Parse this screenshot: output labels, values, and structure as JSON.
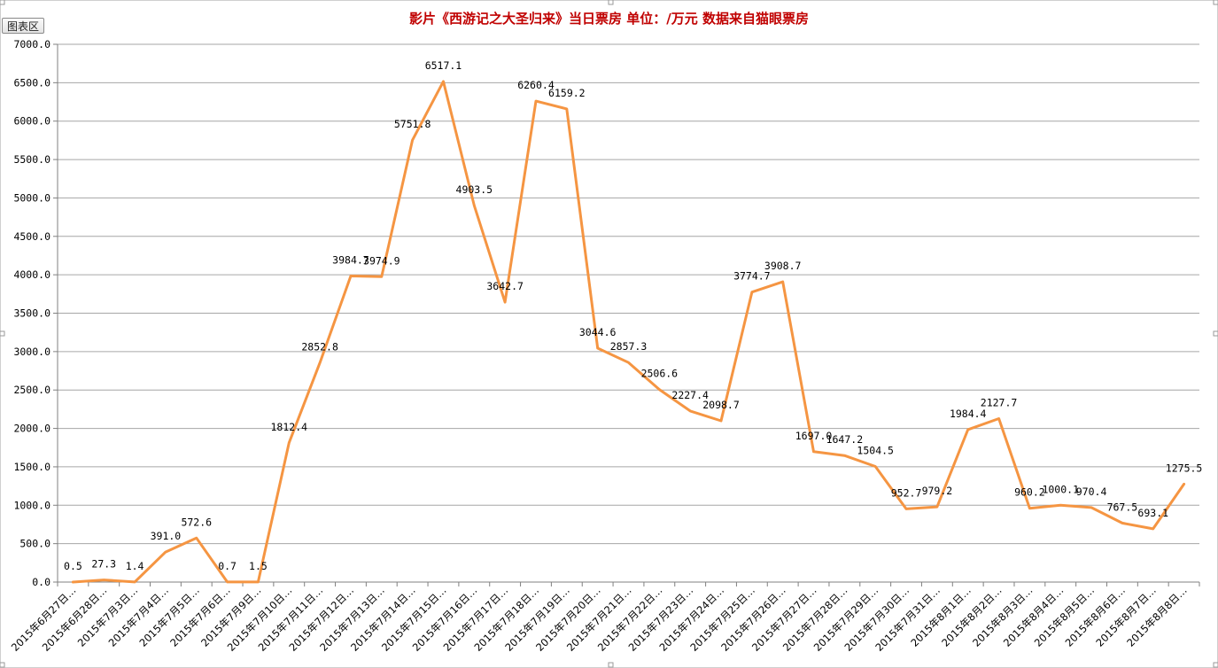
{
  "chart_tab_label": "图表区",
  "chart_data": {
    "type": "line",
    "title": "影片《西游记之大圣归来》当日票房   单位：/万元   数据来自猫眼票房",
    "xlabel": "",
    "ylabel": "",
    "ylim": [
      0,
      7000
    ],
    "yticks": [
      "0.0",
      "500.0",
      "1000.0",
      "1500.0",
      "2000.0",
      "2500.0",
      "3000.0",
      "3500.0",
      "4000.0",
      "4500.0",
      "5000.0",
      "5500.0",
      "6000.0",
      "6500.0",
      "7000.0"
    ],
    "grid": true,
    "legend": "none",
    "line_color": "#f59542",
    "categories": [
      "2015年6月27日…",
      "2015年6月28日…",
      "2015年7月3日…",
      "2015年7月4日…",
      "2015年7月5日…",
      "2015年7月6日…",
      "2015年7月9日…",
      "2015年7月10日…",
      "2015年7月11日…",
      "2015年7月12日…",
      "2015年7月13日…",
      "2015年7月14日…",
      "2015年7月15日…",
      "2015年7月16日…",
      "2015年7月17日…",
      "2015年7月18日…",
      "2015年7月19日…",
      "2015年7月20日…",
      "2015年7月21日…",
      "2015年7月22日…",
      "2015年7月23日…",
      "2015年7月24日…",
      "2015年7月25日…",
      "2015年7月26日…",
      "2015年7月27日…",
      "2015年7月28日…",
      "2015年7月29日…",
      "2015年7月30日…",
      "2015年7月31日…",
      "2015年8月1日…",
      "2015年8月2日…",
      "2015年8月3日…",
      "2015年8月4日…",
      "2015年8月5日…",
      "2015年8月6日…",
      "2015年8月7日…",
      "2015年8月8日…"
    ],
    "values": [
      0.5,
      27.3,
      1.4,
      391.0,
      572.6,
      0.7,
      1.5,
      1812.4,
      2852.8,
      3984.7,
      3974.9,
      5751.8,
      6517.1,
      4903.5,
      3642.7,
      6260.4,
      6159.2,
      3044.6,
      2857.3,
      2506.6,
      2227.4,
      2098.7,
      3774.7,
      3908.7,
      1697.0,
      1647.2,
      1504.5,
      952.7,
      979.2,
      1984.4,
      2127.7,
      960.2,
      1000.1,
      970.4,
      767.5,
      693.1,
      1275.5
    ],
    "data_labels": [
      "0.5",
      "27.3",
      "1.4",
      "391.0",
      "572.6",
      "0.7",
      "1.5",
      "1812.4",
      "2852.8",
      "3984.7",
      "3974.9",
      "5751.8",
      "6517.1",
      "4903.5",
      "3642.7",
      "6260.4",
      "6159.2",
      "3044.6",
      "2857.3",
      "2506.6",
      "2227.4",
      "2098.7",
      "3774.7",
      "3908.7",
      "1697.0",
      "1647.2",
      "1504.5",
      "952.7",
      "979.2",
      "1984.4",
      "2127.7",
      "960.2",
      "1000.1",
      "970.4",
      "767.5",
      "693.1",
      "1275.5"
    ]
  }
}
